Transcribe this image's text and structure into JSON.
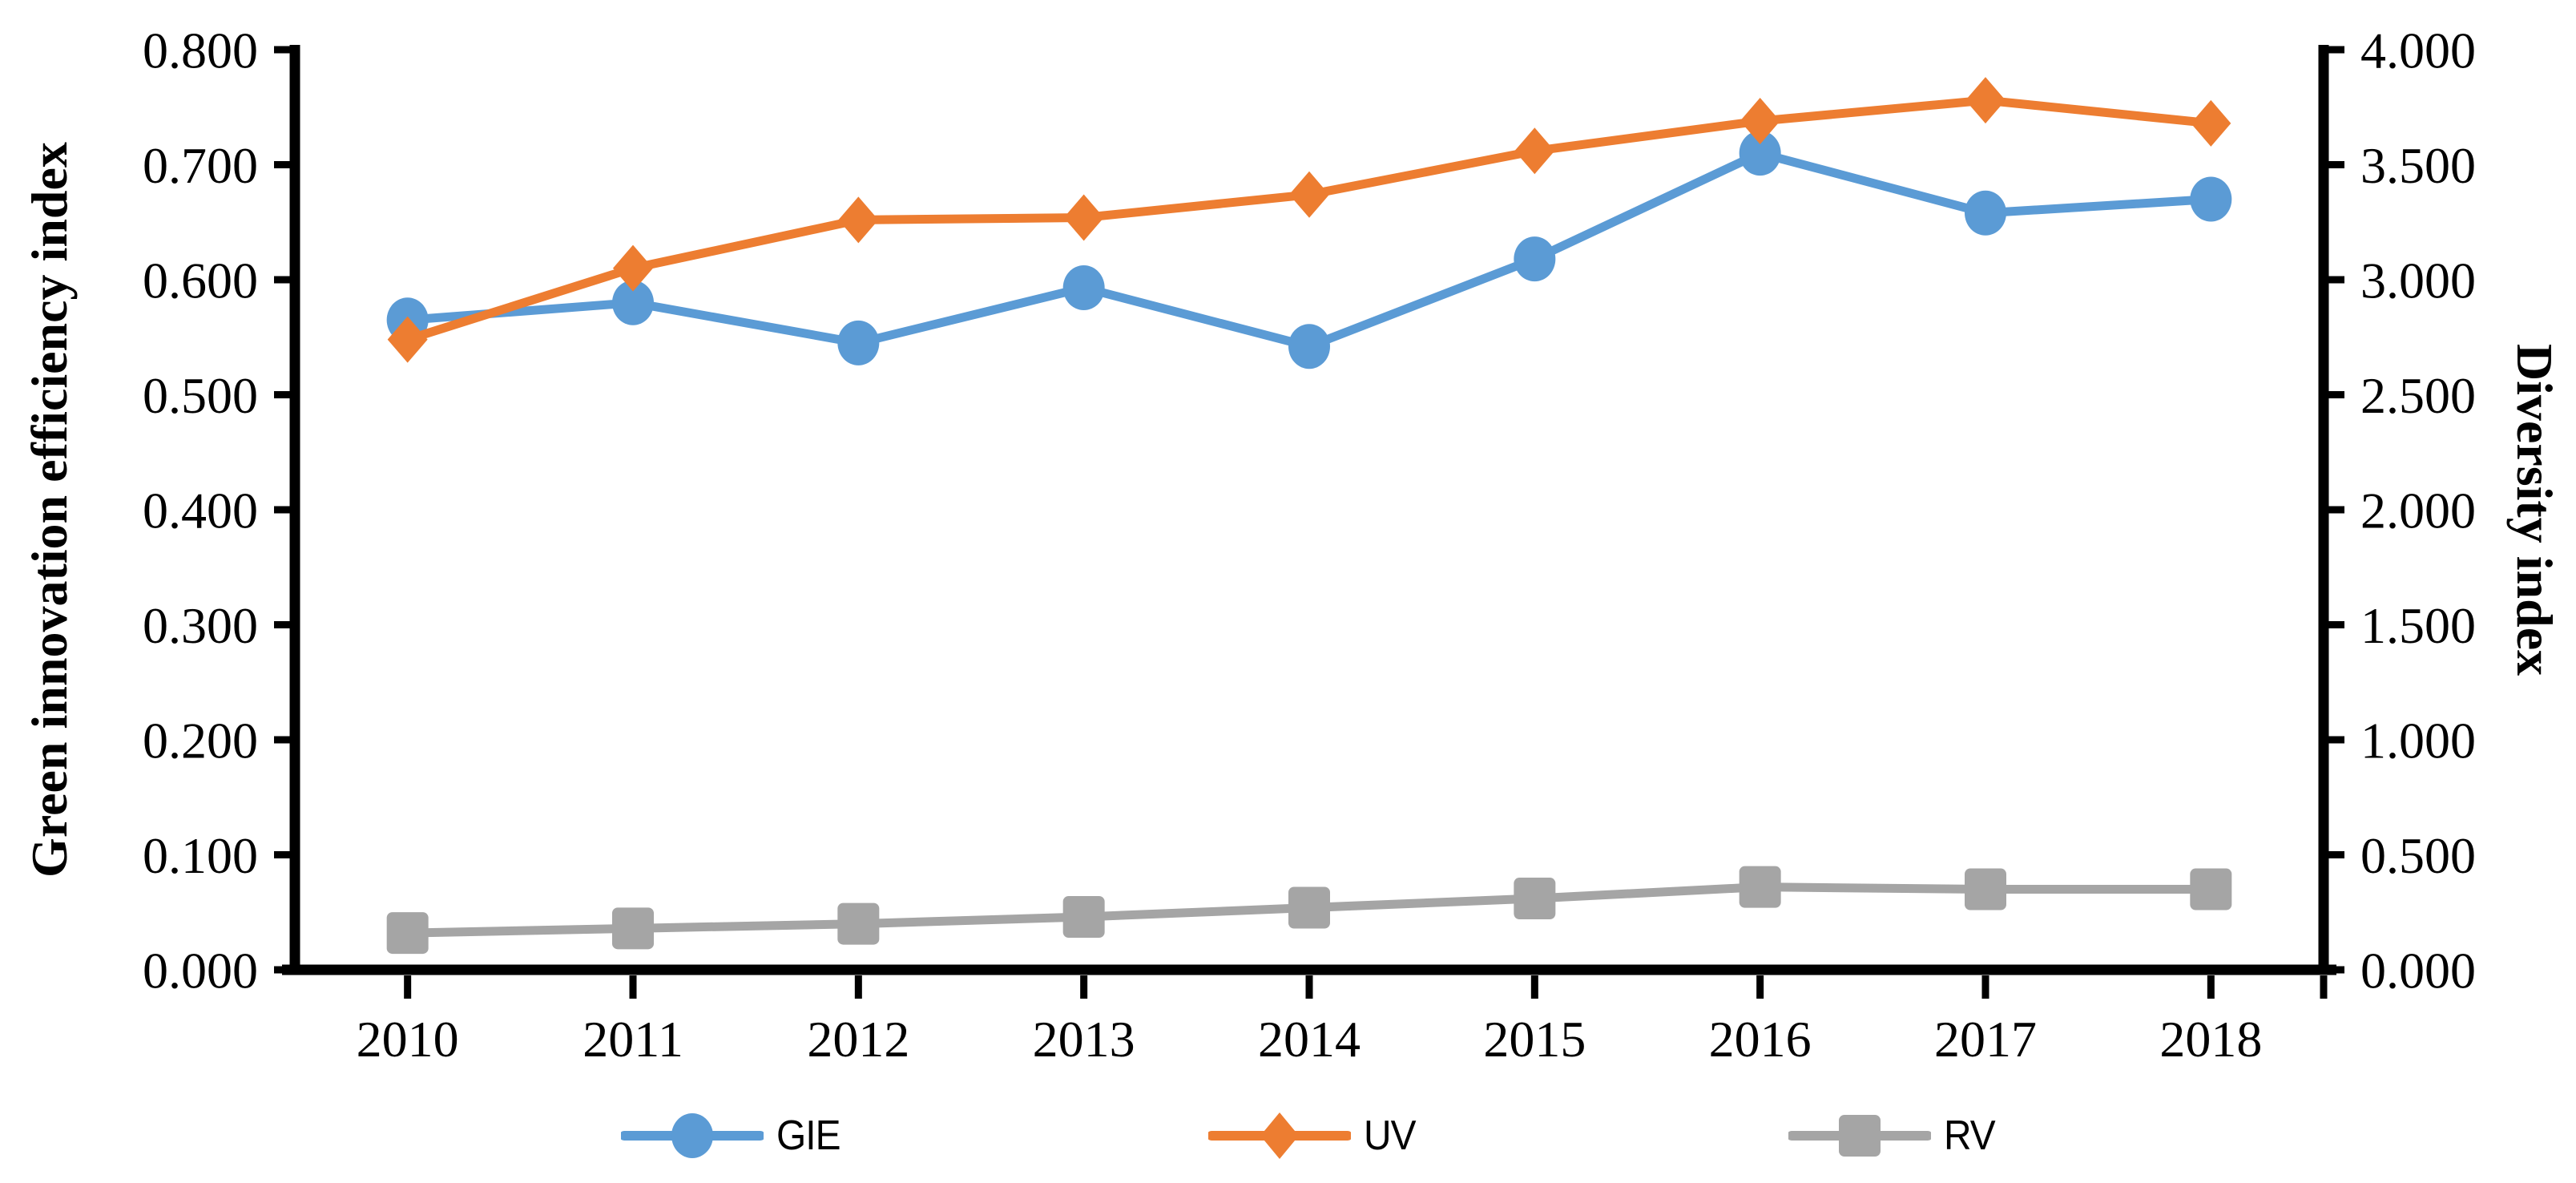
{
  "figure": {
    "left_axis": {
      "title": "Green innovation efficiency index",
      "tick_labels": [
        "0.000",
        "0.100",
        "0.200",
        "0.300",
        "0.400",
        "0.500",
        "0.600",
        "0.700",
        "0.800"
      ]
    },
    "right_axis": {
      "title": "Diversity index",
      "tick_labels": [
        "0.000",
        "0.500",
        "1.000",
        "1.500",
        "2.000",
        "2.500",
        "3.000",
        "3.500",
        "4.000"
      ]
    },
    "x_axis": {
      "tick_labels": [
        "2010",
        "2011",
        "2012",
        "2013",
        "2014",
        "2015",
        "2016",
        "2017",
        "2018"
      ]
    },
    "axis_color": "#000000",
    "background_color": "#ffffff"
  },
  "chart_data": {
    "type": "line",
    "title": "",
    "categories": [
      "2010",
      "2011",
      "2012",
      "2013",
      "2014",
      "2015",
      "2016",
      "2017",
      "2018"
    ],
    "left_ylabel": "Green innovation efficiency index",
    "right_ylabel": "Diversity index",
    "left_ylim": [
      0,
      0.8
    ],
    "right_ylim": [
      0,
      4
    ],
    "grid": false,
    "legend_position": "bottom",
    "series": [
      {
        "name": "GIE",
        "axis": "left",
        "color": "#5B9BD5",
        "marker": "circle",
        "values": [
          0.565,
          0.58,
          0.545,
          0.593,
          0.542,
          0.618,
          0.71,
          0.658,
          0.67
        ]
      },
      {
        "name": "UV",
        "axis": "right",
        "color": "#ED7D31",
        "marker": "diamond",
        "values": [
          2.74,
          3.05,
          3.26,
          3.27,
          3.37,
          3.56,
          3.69,
          3.78,
          3.68
        ]
      },
      {
        "name": "RV",
        "axis": "right",
        "color": "#A5A5A5",
        "marker": "square",
        "values": [
          0.16,
          0.18,
          0.2,
          0.23,
          0.27,
          0.31,
          0.36,
          0.35,
          0.35
        ]
      }
    ]
  }
}
